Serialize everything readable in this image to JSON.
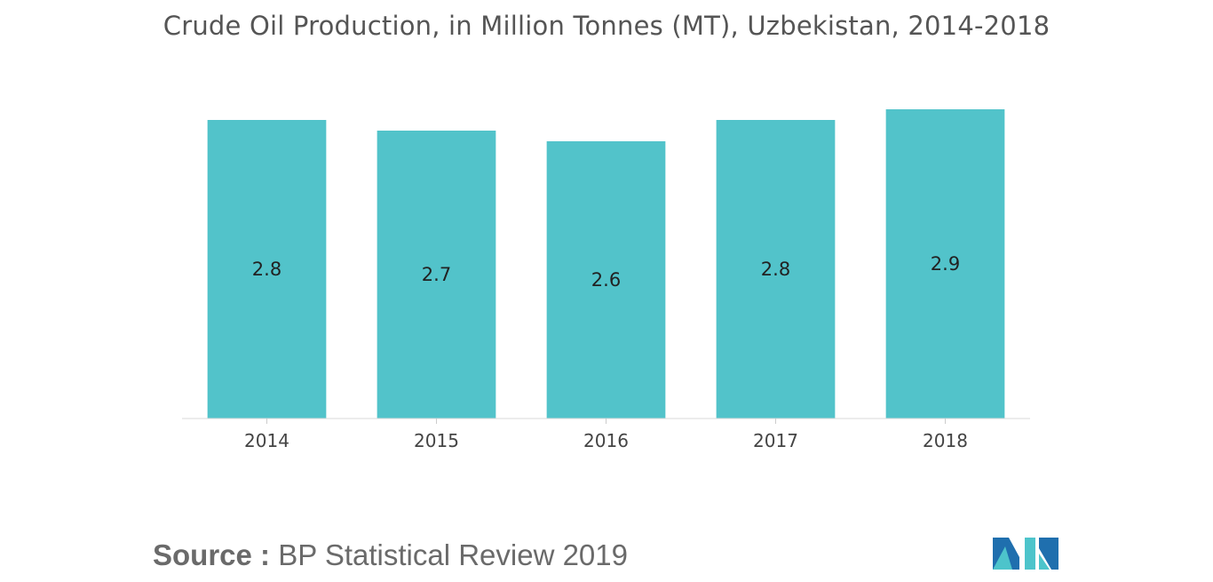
{
  "chart_data": {
    "type": "bar",
    "title": "Crude Oil Production, in Million Tonnes (MT), Uzbekistan, 2014-2018",
    "categories": [
      "2014",
      "2015",
      "2016",
      "2017",
      "2018"
    ],
    "values": [
      2.8,
      2.7,
      2.6,
      2.8,
      2.9
    ],
    "data_labels": [
      "2.8",
      "2.7",
      "2.6",
      "2.8",
      "2.9"
    ],
    "xlabel": "",
    "ylabel": "",
    "ylim": [
      0,
      2.9
    ],
    "grid": false,
    "legend": "none",
    "bar_color": "#52C3CA"
  },
  "source": {
    "label": "Source :",
    "text": "BP Statistical Review 2019"
  },
  "logo": {
    "icon": "mordor-intelligence-logo",
    "colors": [
      "#1F6FAE",
      "#4DC4CB"
    ]
  }
}
